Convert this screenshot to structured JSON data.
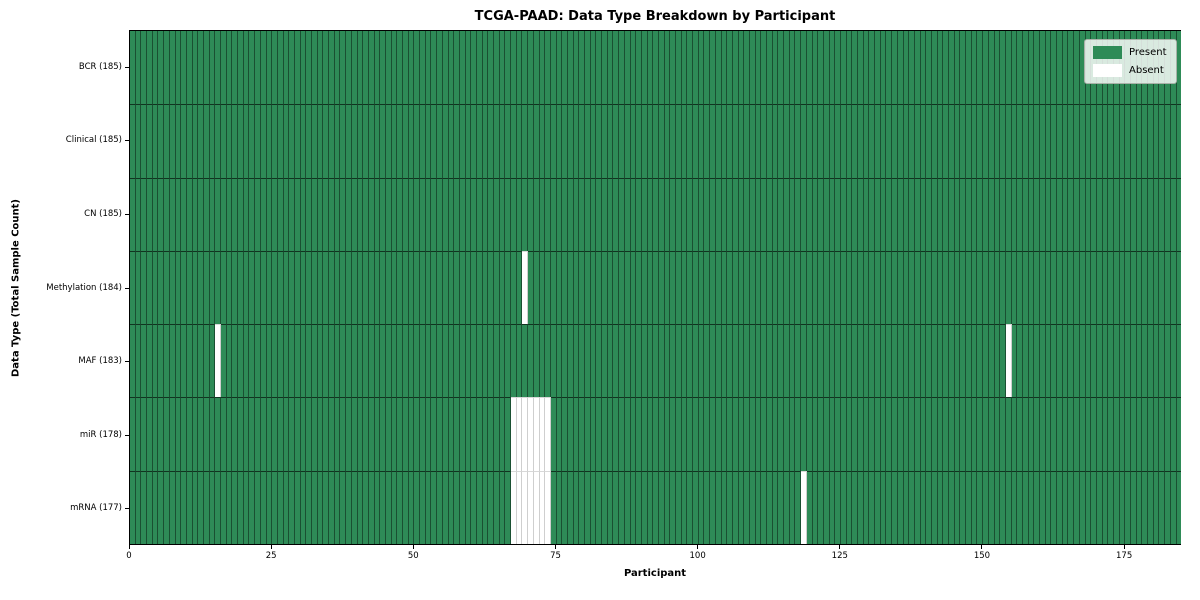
{
  "chart_data": {
    "type": "heatmap",
    "title": "TCGA-PAAD: Data Type Breakdown by Participant",
    "xlabel": "Participant",
    "ylabel": "Data Type (Total Sample Count)",
    "n_participants": 185,
    "x_ticks": [
      0,
      25,
      50,
      75,
      100,
      125,
      150,
      175
    ],
    "x_range": [
      0,
      185
    ],
    "grid": "per-cell edges",
    "legend_position": "upper right",
    "legend": [
      {
        "label": "Present",
        "color": "#2e8b57"
      },
      {
        "label": "Absent",
        "color": "#ffffff"
      }
    ],
    "colors": {
      "present": "#2e8b57",
      "absent": "#ffffff"
    },
    "rows": [
      {
        "label": "BCR (185)",
        "data_type": "BCR",
        "present_count": 185,
        "absent_participants": []
      },
      {
        "label": "Clinical (185)",
        "data_type": "Clinical",
        "present_count": 185,
        "absent_participants": []
      },
      {
        "label": "CN (185)",
        "data_type": "CN",
        "present_count": 185,
        "absent_participants": []
      },
      {
        "label": "Methylation (184)",
        "data_type": "Methylation",
        "present_count": 184,
        "absent_participants": [
          69
        ]
      },
      {
        "label": "MAF (183)",
        "data_type": "MAF",
        "present_count": 183,
        "absent_participants": [
          15,
          154
        ]
      },
      {
        "label": "miR (178)",
        "data_type": "miR",
        "present_count": 178,
        "absent_participants": [
          67,
          68,
          69,
          70,
          71,
          72,
          73
        ]
      },
      {
        "label": "mRNA (177)",
        "data_type": "mRNA",
        "present_count": 177,
        "absent_participants": [
          67,
          68,
          69,
          70,
          71,
          72,
          73,
          118
        ]
      }
    ]
  }
}
